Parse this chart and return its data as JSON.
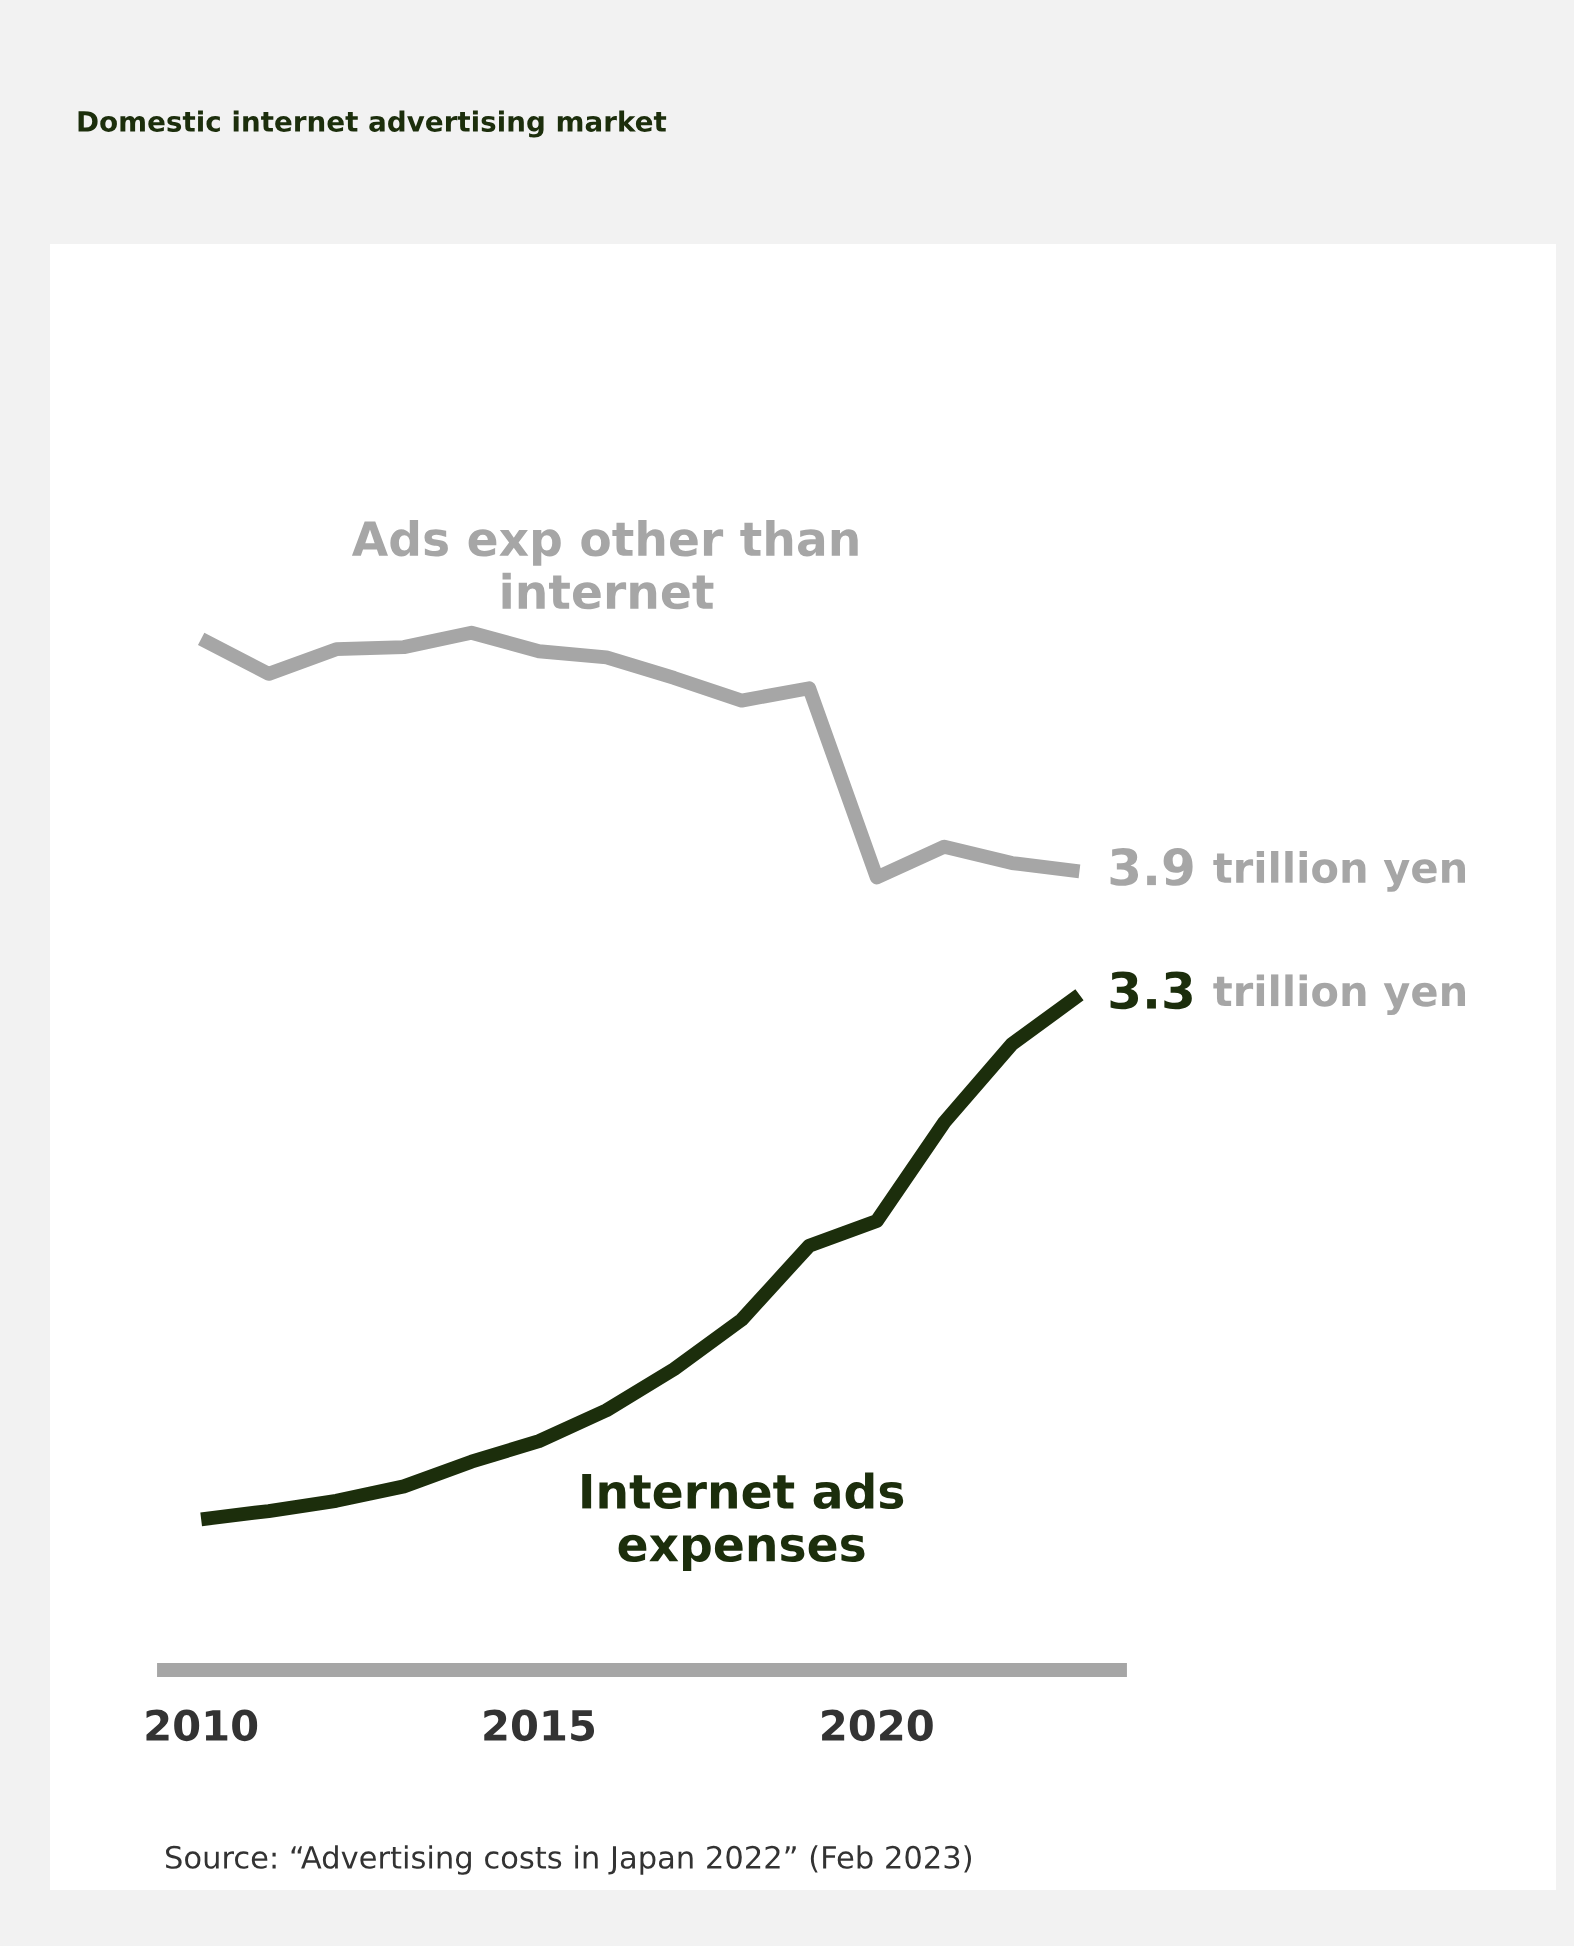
{
  "chart_data": {
    "type": "line",
    "title": "Domestic internet advertising market",
    "x": [
      2010,
      2011,
      2012,
      2013,
      2014,
      2015,
      2016,
      2017,
      2018,
      2019,
      2020,
      2021,
      2022,
      2023
    ],
    "series": [
      {
        "name": "Ads exp other than\ninternet",
        "color": "#a6a6a6",
        "values": [
          5.03,
          4.86,
          4.98,
          4.99,
          5.06,
          4.97,
          4.94,
          4.84,
          4.73,
          4.79,
          3.87,
          4.02,
          3.94,
          3.9
        ],
        "value_labels": [
          null,
          null,
          null,
          null,
          null,
          null,
          null,
          null,
          null,
          null,
          null,
          null,
          null,
          "3.9"
        ]
      },
      {
        "name": "Internet ads\nexpenses",
        "color": "#1c2e0c",
        "values": [
          0.75,
          0.79,
          0.84,
          0.91,
          1.03,
          1.13,
          1.28,
          1.48,
          1.72,
          2.08,
          2.2,
          2.68,
          3.06,
          3.3
        ],
        "value_labels": [
          null,
          null,
          null,
          null,
          null,
          null,
          null,
          null,
          null,
          null,
          null,
          null,
          null,
          "3.3"
        ]
      }
    ],
    "xlim": [
      2009.45,
      2023.6
    ],
    "xticks": [
      2010,
      2015,
      2020
    ],
    "tick_labels": "x",
    "grid": false,
    "legend": false,
    "marker": "none",
    "line_style": "solid",
    "annotations": [
      "trillion yen",
      "trillion yen",
      "Source: “Advertising costs in Japan 2022” (Feb 2023)"
    ]
  }
}
